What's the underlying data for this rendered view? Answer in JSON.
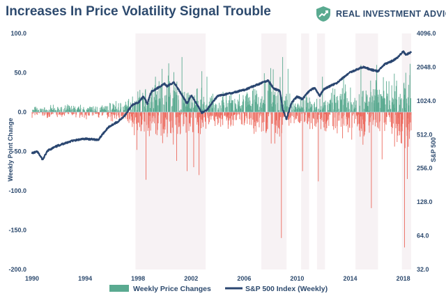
{
  "title": "Increases In Price Volatility Signal Trouble",
  "brand": {
    "name": "REAL INVESTMENT ADVICE",
    "logo_icon": "trend-up-shield-icon",
    "logo_color": "#5aaa90"
  },
  "chart_data": {
    "type": "bar",
    "x_ticks": [
      "1990",
      "1994",
      "1998",
      "2002",
      "2006",
      "2010",
      "2014",
      "2018"
    ],
    "xlim": [
      1990,
      2018.6
    ],
    "left_axis": {
      "label": "Weekly Point Change",
      "ticks": [
        "100.0",
        "50.0",
        "0.0",
        "-50.0",
        "-100.0",
        "-150.0",
        "-200.0"
      ],
      "ylim": [
        -200,
        100
      ]
    },
    "right_axis": {
      "label": "S&P 500",
      "ticks": [
        "4096.0",
        "2048.0",
        "1024.0",
        "512.0",
        "256.0",
        "128.0",
        "64.0",
        "32.0"
      ],
      "ylim": [
        32,
        4096
      ],
      "scale": "log2"
    },
    "shaded_periods": [
      [
        1997.8,
        2003.1
      ],
      [
        2007.3,
        2009.2
      ],
      [
        2010.3,
        2010.9
      ],
      [
        2011.5,
        2012.1
      ],
      [
        2014.4,
        2016.1
      ],
      [
        2017.9,
        2018.6
      ]
    ],
    "series": [
      {
        "name": "Weekly Price Changes",
        "type": "bar",
        "positive_color": "#5aaa90",
        "negative_color": "#ec6a5e",
        "spikes": [
          [
            1997.9,
            -48
          ],
          [
            1998.6,
            -86
          ],
          [
            1999.3,
            45
          ],
          [
            1999.8,
            55
          ],
          [
            2000.3,
            62
          ],
          [
            2000.9,
            -62
          ],
          [
            2001.3,
            70
          ],
          [
            2001.7,
            -75
          ],
          [
            2002.2,
            -70
          ],
          [
            2002.6,
            -80
          ],
          [
            2002.8,
            52
          ],
          [
            2003.2,
            45
          ],
          [
            2007.6,
            40
          ],
          [
            2008.3,
            -40
          ],
          [
            2008.8,
            -160
          ],
          [
            2008.9,
            70
          ],
          [
            2009.3,
            55
          ],
          [
            2010.4,
            -75
          ],
          [
            2011.6,
            -88
          ],
          [
            2011.9,
            45
          ],
          [
            2013.5,
            45
          ],
          [
            2014.8,
            60
          ],
          [
            2015.6,
            -122
          ],
          [
            2016.0,
            60
          ],
          [
            2016.4,
            -60
          ],
          [
            2017.5,
            40
          ],
          [
            2018.1,
            -172
          ],
          [
            2018.2,
            50
          ],
          [
            2018.3,
            -85
          ]
        ]
      },
      {
        "name": "S&P 500 Index (Weekly)",
        "type": "line",
        "color": "#2a4670",
        "points": [
          [
            1990.0,
            350
          ],
          [
            1990.4,
            360
          ],
          [
            1990.8,
            305
          ],
          [
            1991.2,
            370
          ],
          [
            1992.0,
            410
          ],
          [
            1993.0,
            450
          ],
          [
            1994.0,
            470
          ],
          [
            1995.0,
            460
          ],
          [
            1995.8,
            600
          ],
          [
            1996.5,
            670
          ],
          [
            1997.0,
            760
          ],
          [
            1997.6,
            950
          ],
          [
            1998.0,
            980
          ],
          [
            1998.4,
            1120
          ],
          [
            1998.7,
            960
          ],
          [
            1999.0,
            1240
          ],
          [
            1999.5,
            1340
          ],
          [
            2000.0,
            1450
          ],
          [
            2000.2,
            1380
          ],
          [
            2000.7,
            1500
          ],
          [
            2001.0,
            1320
          ],
          [
            2001.3,
            1160
          ],
          [
            2001.7,
            960
          ],
          [
            2002.0,
            1150
          ],
          [
            2002.5,
            930
          ],
          [
            2002.8,
            800
          ],
          [
            2003.2,
            850
          ],
          [
            2003.6,
            990
          ],
          [
            2004.0,
            1130
          ],
          [
            2005.0,
            1200
          ],
          [
            2006.0,
            1280
          ],
          [
            2007.0,
            1430
          ],
          [
            2007.8,
            1560
          ],
          [
            2008.2,
            1330
          ],
          [
            2008.7,
            1250
          ],
          [
            2008.9,
            860
          ],
          [
            2009.2,
            700
          ],
          [
            2009.6,
            990
          ],
          [
            2010.0,
            1120
          ],
          [
            2010.4,
            1060
          ],
          [
            2010.9,
            1250
          ],
          [
            2011.3,
            1340
          ],
          [
            2011.7,
            1130
          ],
          [
            2012.0,
            1300
          ],
          [
            2013.0,
            1480
          ],
          [
            2014.0,
            1840
          ],
          [
            2015.0,
            2060
          ],
          [
            2015.6,
            1940
          ],
          [
            2016.1,
            1880
          ],
          [
            2016.6,
            2170
          ],
          [
            2017.0,
            2270
          ],
          [
            2017.5,
            2450
          ],
          [
            2018.0,
            2820
          ],
          [
            2018.2,
            2640
          ],
          [
            2018.6,
            2780
          ]
        ]
      }
    ],
    "legend_position": "bottom-center"
  }
}
